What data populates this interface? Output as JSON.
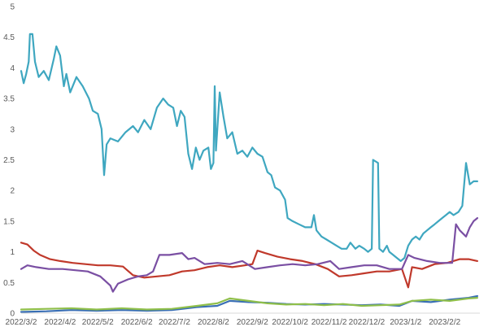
{
  "chart_data": {
    "type": "line",
    "title": "",
    "xlabel": "",
    "ylabel": "",
    "ylim": [
      0,
      5
    ],
    "yticks": [
      "0",
      "0.5",
      "1",
      "1.5",
      "2",
      "2.5",
      "3",
      "3.5",
      "4",
      "4.5",
      "5"
    ],
    "xlim": [
      "2022-03-02",
      "2023-03-02"
    ],
    "xticks": [
      "2022/3/2",
      "2022/4/2",
      "2022/5/2",
      "2022/6/2",
      "2022/7/2",
      "2022/8/2",
      "2022/9/2",
      "2022/10/2",
      "2022/11/2",
      "2022/12/2",
      "2023/1/2",
      "2023/2/2"
    ],
    "grid": false,
    "legend": "none",
    "series": [
      {
        "color": "#3fa7c0",
        "points": [
          [
            "2022-03-02",
            3.95
          ],
          [
            "2022-03-04",
            3.75
          ],
          [
            "2022-03-06",
            3.9
          ],
          [
            "2022-03-08",
            4.1
          ],
          [
            "2022-03-09",
            4.55
          ],
          [
            "2022-03-11",
            4.55
          ],
          [
            "2022-03-13",
            4.1
          ],
          [
            "2022-03-16",
            3.85
          ],
          [
            "2022-03-20",
            3.95
          ],
          [
            "2022-03-24",
            3.8
          ],
          [
            "2022-03-28",
            4.15
          ],
          [
            "2022-03-30",
            4.35
          ],
          [
            "2022-04-02",
            4.2
          ],
          [
            "2022-04-05",
            3.7
          ],
          [
            "2022-04-07",
            3.9
          ],
          [
            "2022-04-10",
            3.6
          ],
          [
            "2022-04-15",
            3.85
          ],
          [
            "2022-04-20",
            3.7
          ],
          [
            "2022-04-25",
            3.5
          ],
          [
            "2022-04-28",
            3.3
          ],
          [
            "2022-05-02",
            3.25
          ],
          [
            "2022-05-05",
            3.0
          ],
          [
            "2022-05-07",
            2.25
          ],
          [
            "2022-05-09",
            2.75
          ],
          [
            "2022-05-12",
            2.85
          ],
          [
            "2022-05-18",
            2.8
          ],
          [
            "2022-05-24",
            2.95
          ],
          [
            "2022-05-30",
            3.05
          ],
          [
            "2022-06-03",
            2.95
          ],
          [
            "2022-06-08",
            3.15
          ],
          [
            "2022-06-13",
            3.0
          ],
          [
            "2022-06-18",
            3.35
          ],
          [
            "2022-06-23",
            3.5
          ],
          [
            "2022-06-27",
            3.4
          ],
          [
            "2022-07-01",
            3.35
          ],
          [
            "2022-07-04",
            3.05
          ],
          [
            "2022-07-07",
            3.3
          ],
          [
            "2022-07-10",
            3.2
          ],
          [
            "2022-07-13",
            2.6
          ],
          [
            "2022-07-16",
            2.35
          ],
          [
            "2022-07-19",
            2.7
          ],
          [
            "2022-07-22",
            2.5
          ],
          [
            "2022-07-25",
            2.65
          ],
          [
            "2022-07-29",
            2.7
          ],
          [
            "2022-07-31",
            2.35
          ],
          [
            "2022-08-02",
            2.45
          ],
          [
            "2022-08-03",
            3.7
          ],
          [
            "2022-08-04",
            2.65
          ],
          [
            "2022-08-07",
            3.6
          ],
          [
            "2022-08-10",
            3.2
          ],
          [
            "2022-08-13",
            2.85
          ],
          [
            "2022-08-17",
            2.95
          ],
          [
            "2022-08-21",
            2.6
          ],
          [
            "2022-08-25",
            2.65
          ],
          [
            "2022-08-29",
            2.55
          ],
          [
            "2022-09-02",
            2.7
          ],
          [
            "2022-09-06",
            2.6
          ],
          [
            "2022-09-10",
            2.55
          ],
          [
            "2022-09-14",
            2.3
          ],
          [
            "2022-09-17",
            2.25
          ],
          [
            "2022-09-20",
            2.05
          ],
          [
            "2022-09-24",
            2.0
          ],
          [
            "2022-09-28",
            1.85
          ],
          [
            "2022-09-30",
            1.55
          ],
          [
            "2022-10-04",
            1.5
          ],
          [
            "2022-10-09",
            1.45
          ],
          [
            "2022-10-14",
            1.4
          ],
          [
            "2022-10-19",
            1.4
          ],
          [
            "2022-10-21",
            1.6
          ],
          [
            "2022-10-23",
            1.35
          ],
          [
            "2022-10-27",
            1.25
          ],
          [
            "2022-10-31",
            1.2
          ],
          [
            "2022-11-04",
            1.15
          ],
          [
            "2022-11-08",
            1.1
          ],
          [
            "2022-11-12",
            1.05
          ],
          [
            "2022-11-16",
            1.05
          ],
          [
            "2022-11-19",
            1.15
          ],
          [
            "2022-11-23",
            1.05
          ],
          [
            "2022-11-26",
            1.1
          ],
          [
            "2022-11-30",
            1.05
          ],
          [
            "2022-12-03",
            1.0
          ],
          [
            "2022-12-06",
            1.05
          ],
          [
            "2022-12-07",
            2.5
          ],
          [
            "2022-12-11",
            2.45
          ],
          [
            "2022-12-12",
            1.05
          ],
          [
            "2022-12-15",
            1.0
          ],
          [
            "2022-12-18",
            1.1
          ],
          [
            "2022-12-20",
            1.0
          ],
          [
            "2022-12-23",
            0.95
          ],
          [
            "2022-12-26",
            0.9
          ],
          [
            "2022-12-29",
            0.85
          ],
          [
            "2023-01-01",
            0.9
          ],
          [
            "2023-01-04",
            1.1
          ],
          [
            "2023-01-07",
            1.2
          ],
          [
            "2023-01-10",
            1.25
          ],
          [
            "2023-01-13",
            1.2
          ],
          [
            "2023-01-16",
            1.3
          ],
          [
            "2023-01-19",
            1.35
          ],
          [
            "2023-01-22",
            1.4
          ],
          [
            "2023-01-25",
            1.45
          ],
          [
            "2023-01-28",
            1.5
          ],
          [
            "2023-01-31",
            1.55
          ],
          [
            "2023-02-03",
            1.6
          ],
          [
            "2023-02-06",
            1.65
          ],
          [
            "2023-02-09",
            1.6
          ],
          [
            "2023-02-13",
            1.65
          ],
          [
            "2023-02-16",
            1.75
          ],
          [
            "2023-02-19",
            2.45
          ],
          [
            "2023-02-22",
            2.1
          ],
          [
            "2023-02-25",
            2.15
          ],
          [
            "2023-02-28",
            2.15
          ]
        ]
      },
      {
        "color": "#c0392b",
        "points": [
          [
            "2022-03-02",
            1.15
          ],
          [
            "2022-03-07",
            1.12
          ],
          [
            "2022-03-12",
            1.02
          ],
          [
            "2022-03-17",
            0.95
          ],
          [
            "2022-03-25",
            0.88
          ],
          [
            "2022-04-02",
            0.85
          ],
          [
            "2022-04-12",
            0.82
          ],
          [
            "2022-04-22",
            0.8
          ],
          [
            "2022-05-02",
            0.78
          ],
          [
            "2022-05-12",
            0.78
          ],
          [
            "2022-05-22",
            0.76
          ],
          [
            "2022-05-30",
            0.62
          ],
          [
            "2022-06-08",
            0.58
          ],
          [
            "2022-06-18",
            0.6
          ],
          [
            "2022-06-28",
            0.62
          ],
          [
            "2022-07-08",
            0.68
          ],
          [
            "2022-07-18",
            0.7
          ],
          [
            "2022-07-28",
            0.75
          ],
          [
            "2022-08-07",
            0.78
          ],
          [
            "2022-08-17",
            0.75
          ],
          [
            "2022-08-27",
            0.78
          ],
          [
            "2022-09-02",
            0.8
          ],
          [
            "2022-09-06",
            1.02
          ],
          [
            "2022-09-12",
            0.98
          ],
          [
            "2022-09-22",
            0.92
          ],
          [
            "2022-10-02",
            0.88
          ],
          [
            "2022-10-12",
            0.85
          ],
          [
            "2022-10-22",
            0.8
          ],
          [
            "2022-11-01",
            0.72
          ],
          [
            "2022-11-10",
            0.6
          ],
          [
            "2022-11-20",
            0.62
          ],
          [
            "2022-11-30",
            0.65
          ],
          [
            "2022-12-10",
            0.68
          ],
          [
            "2022-12-20",
            0.68
          ],
          [
            "2022-12-30",
            0.72
          ],
          [
            "2023-01-04",
            0.42
          ],
          [
            "2023-01-07",
            0.75
          ],
          [
            "2023-01-15",
            0.72
          ],
          [
            "2023-01-25",
            0.8
          ],
          [
            "2023-02-04",
            0.82
          ],
          [
            "2023-02-14",
            0.88
          ],
          [
            "2023-02-21",
            0.88
          ],
          [
            "2023-02-28",
            0.85
          ]
        ]
      },
      {
        "color": "#7a4fa3",
        "points": [
          [
            "2022-03-02",
            0.72
          ],
          [
            "2022-03-07",
            0.78
          ],
          [
            "2022-03-14",
            0.75
          ],
          [
            "2022-03-24",
            0.72
          ],
          [
            "2022-04-04",
            0.72
          ],
          [
            "2022-04-14",
            0.7
          ],
          [
            "2022-04-24",
            0.68
          ],
          [
            "2022-05-04",
            0.6
          ],
          [
            "2022-05-12",
            0.45
          ],
          [
            "2022-05-14",
            0.35
          ],
          [
            "2022-05-18",
            0.48
          ],
          [
            "2022-05-26",
            0.55
          ],
          [
            "2022-06-03",
            0.6
          ],
          [
            "2022-06-10",
            0.62
          ],
          [
            "2022-06-15",
            0.68
          ],
          [
            "2022-06-20",
            0.95
          ],
          [
            "2022-06-28",
            0.95
          ],
          [
            "2022-07-08",
            0.98
          ],
          [
            "2022-07-13",
            0.88
          ],
          [
            "2022-07-18",
            0.9
          ],
          [
            "2022-07-26",
            0.8
          ],
          [
            "2022-08-05",
            0.82
          ],
          [
            "2022-08-15",
            0.8
          ],
          [
            "2022-08-25",
            0.85
          ],
          [
            "2022-09-04",
            0.72
          ],
          [
            "2022-09-14",
            0.75
          ],
          [
            "2022-09-24",
            0.78
          ],
          [
            "2022-10-04",
            0.8
          ],
          [
            "2022-10-14",
            0.78
          ],
          [
            "2022-10-24",
            0.8
          ],
          [
            "2022-11-03",
            0.85
          ],
          [
            "2022-11-10",
            0.72
          ],
          [
            "2022-11-20",
            0.75
          ],
          [
            "2022-11-30",
            0.78
          ],
          [
            "2022-12-10",
            0.78
          ],
          [
            "2022-12-20",
            0.72
          ],
          [
            "2022-12-30",
            0.72
          ],
          [
            "2023-01-04",
            0.95
          ],
          [
            "2023-01-09",
            0.9
          ],
          [
            "2023-01-19",
            0.85
          ],
          [
            "2023-01-29",
            0.82
          ],
          [
            "2023-02-08",
            0.82
          ],
          [
            "2023-02-11",
            1.45
          ],
          [
            "2023-02-14",
            1.35
          ],
          [
            "2023-02-19",
            1.25
          ],
          [
            "2023-02-22",
            1.4
          ],
          [
            "2023-02-25",
            1.5
          ],
          [
            "2023-02-28",
            1.55
          ]
        ]
      },
      {
        "color": "#3a6fb5",
        "points": [
          [
            "2022-03-02",
            0.02
          ],
          [
            "2022-03-22",
            0.03
          ],
          [
            "2022-04-11",
            0.05
          ],
          [
            "2022-05-01",
            0.04
          ],
          [
            "2022-05-21",
            0.05
          ],
          [
            "2022-06-10",
            0.04
          ],
          [
            "2022-06-30",
            0.05
          ],
          [
            "2022-07-20",
            0.1
          ],
          [
            "2022-08-05",
            0.12
          ],
          [
            "2022-08-15",
            0.2
          ],
          [
            "2022-08-30",
            0.18
          ],
          [
            "2022-09-14",
            0.17
          ],
          [
            "2022-09-29",
            0.15
          ],
          [
            "2022-10-14",
            0.14
          ],
          [
            "2022-10-29",
            0.15
          ],
          [
            "2022-11-13",
            0.14
          ],
          [
            "2022-11-28",
            0.13
          ],
          [
            "2022-12-13",
            0.14
          ],
          [
            "2022-12-28",
            0.12
          ],
          [
            "2023-01-07",
            0.2
          ],
          [
            "2023-01-22",
            0.18
          ],
          [
            "2023-02-06",
            0.22
          ],
          [
            "2023-02-21",
            0.25
          ],
          [
            "2023-02-28",
            0.28
          ]
        ]
      },
      {
        "color": "#8fbf4a",
        "points": [
          [
            "2022-03-02",
            0.06
          ],
          [
            "2022-03-22",
            0.07
          ],
          [
            "2022-04-11",
            0.08
          ],
          [
            "2022-05-01",
            0.06
          ],
          [
            "2022-05-21",
            0.08
          ],
          [
            "2022-06-10",
            0.06
          ],
          [
            "2022-06-30",
            0.07
          ],
          [
            "2022-07-20",
            0.12
          ],
          [
            "2022-08-05",
            0.16
          ],
          [
            "2022-08-15",
            0.24
          ],
          [
            "2022-08-30",
            0.2
          ],
          [
            "2022-09-14",
            0.16
          ],
          [
            "2022-09-29",
            0.14
          ],
          [
            "2022-10-14",
            0.15
          ],
          [
            "2022-10-29",
            0.13
          ],
          [
            "2022-11-13",
            0.15
          ],
          [
            "2022-11-28",
            0.12
          ],
          [
            "2022-12-13",
            0.13
          ],
          [
            "2022-12-28",
            0.14
          ],
          [
            "2023-01-07",
            0.2
          ],
          [
            "2023-01-22",
            0.22
          ],
          [
            "2023-02-06",
            0.2
          ],
          [
            "2023-02-21",
            0.24
          ],
          [
            "2023-02-28",
            0.25
          ]
        ]
      }
    ]
  }
}
